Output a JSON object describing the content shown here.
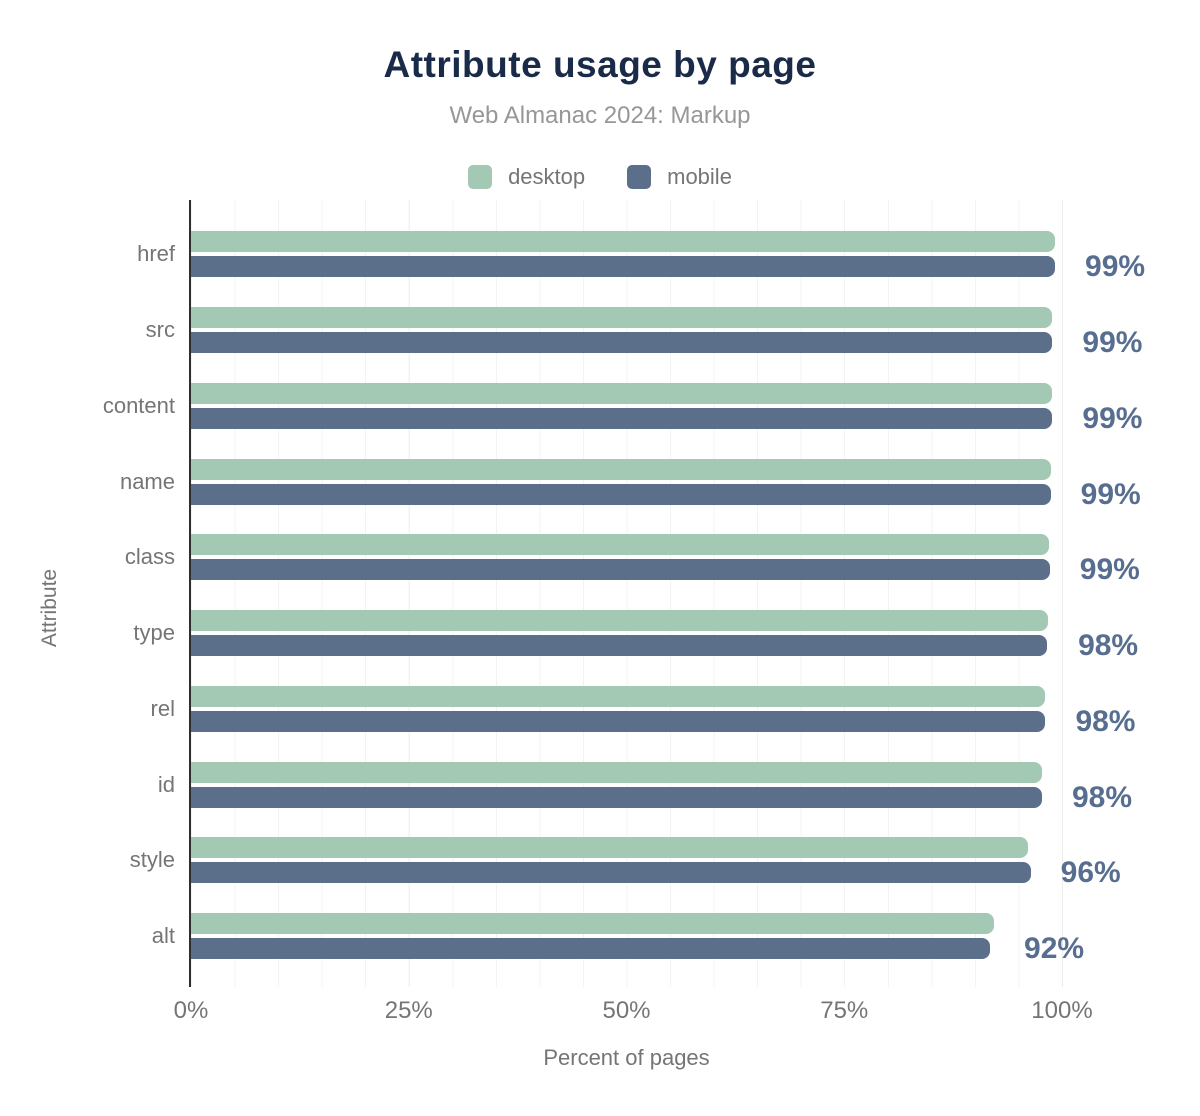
{
  "header": {
    "title": "Attribute usage by page",
    "subtitle": "Web Almanac 2024: Markup"
  },
  "legend": {
    "items": [
      {
        "label": "desktop",
        "color": "#a3c9b5"
      },
      {
        "label": "mobile",
        "color": "#5c6f8a"
      }
    ]
  },
  "colors": {
    "desktop_bar": "#a3c9b5",
    "mobile_bar": "#5c6f8a",
    "annotation_text": "#586e90",
    "title_text": "#1a2b49",
    "axis_text": "#757575",
    "subtitle_text": "#979797",
    "axis_line": "#2e2e2e",
    "gridline": "#f3f3f3"
  },
  "chart_data": {
    "type": "bar",
    "orientation": "horizontal",
    "title": "Attribute usage by page",
    "subtitle": "Web Almanac 2024: Markup",
    "xlabel": "Percent of pages",
    "ylabel": "Attribute",
    "xlim": [
      0,
      100
    ],
    "grid": "vertical lines every 5%",
    "legend_position": "top",
    "x_ticks": [
      {
        "value": 0,
        "label": "0%"
      },
      {
        "value": 25,
        "label": "25%"
      },
      {
        "value": 50,
        "label": "50%"
      },
      {
        "value": 75,
        "label": "75%"
      },
      {
        "value": 100,
        "label": "100%"
      }
    ],
    "categories": [
      "href",
      "src",
      "content",
      "name",
      "class",
      "type",
      "rel",
      "id",
      "style",
      "alt"
    ],
    "series": [
      {
        "name": "desktop",
        "values": [
          99.2,
          98.9,
          98.9,
          98.7,
          98.5,
          98.4,
          98.1,
          97.7,
          96.1,
          92.2
        ]
      },
      {
        "name": "mobile",
        "values": [
          99.2,
          98.9,
          98.9,
          98.7,
          98.6,
          98.3,
          98.0,
          97.7,
          96.4,
          91.7
        ]
      }
    ],
    "annotations": [
      "99%",
      "99%",
      "99%",
      "99%",
      "99%",
      "98%",
      "98%",
      "98%",
      "96%",
      "92%"
    ]
  }
}
